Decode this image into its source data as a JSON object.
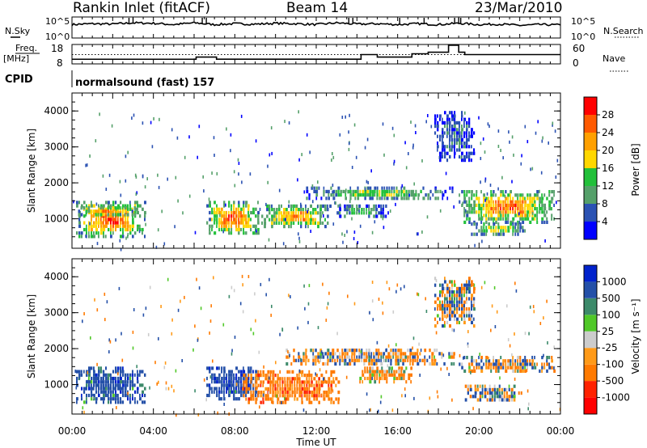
{
  "header": {
    "station": "Rankin Inlet (fitACF)",
    "beam": "Beam 14",
    "date": "23/Mar/2010"
  },
  "noise_panel": {
    "left_label": "N.Sky",
    "right_label": "N.Search",
    "left_ticks": [
      "10^5",
      "10^0"
    ],
    "right_ticks": [
      "10^5",
      "10^0"
    ]
  },
  "freq_panel": {
    "left_label_line1": "Freq.",
    "left_label_line2": "[MHz]",
    "right_label": "Nave",
    "left_ticks": [
      "18",
      "8"
    ],
    "right_ticks": [
      "60",
      "0"
    ]
  },
  "cpid_panel": {
    "label": "CPID",
    "text": "normalsound (fast) 157"
  },
  "x_axis": {
    "label": "Time UT",
    "ticks": [
      "00:00",
      "04:00",
      "08:00",
      "12:00",
      "16:00",
      "20:00",
      "00:00"
    ]
  },
  "range_axis": {
    "label": "Slant Range [km]",
    "ticks": [
      "1000",
      "2000",
      "3000",
      "4000"
    ]
  },
  "colors": {
    "power": [
      "#0000ff",
      "#2b52b3",
      "#55a06a",
      "#22c03a",
      "#ffd700",
      "#ffa000",
      "#ff5a00",
      "#ff0000"
    ],
    "velocity": [
      "#0022cc",
      "#2450a8",
      "#3c8a6a",
      "#50c828",
      "#cccccc",
      "#ff9a18",
      "#ff7a00",
      "#ff2200",
      "#ff0000"
    ]
  },
  "power_colorbar": {
    "label": "Power [dB]",
    "ticks": [
      "4",
      "8",
      "12",
      "16",
      "20",
      "24",
      "28"
    ]
  },
  "velocity_colorbar": {
    "label": "Velocity [m s⁻¹]",
    "ticks": [
      "1000",
      "500",
      "100",
      "25",
      "-25",
      "-100",
      "-500",
      "-1000"
    ]
  },
  "chart_data": [
    {
      "type": "line",
      "panel": "noise",
      "x_hours": [
        0,
        1,
        2,
        3,
        4,
        5,
        6,
        7,
        8,
        9,
        10,
        11,
        12,
        13,
        14,
        15,
        16,
        17,
        18,
        19,
        20,
        21,
        22,
        23,
        24
      ],
      "series": [
        {
          "values": [
            3.2,
            3.4,
            3.3,
            3.6,
            3.5,
            3.2,
            3.6,
            3.2,
            3.4,
            3.3,
            3.5,
            3.4,
            3.2,
            3.6,
            3.3,
            3.4,
            3.2,
            3.4,
            3.2,
            3.5,
            3.2,
            3.3,
            3.0,
            3.2,
            3.1
          ]
        }
      ],
      "ylim": [
        0,
        5
      ]
    },
    {
      "type": "line",
      "panel": "frequency",
      "x_hours": [
        0,
        6.0,
        6.1,
        7.0,
        7.1,
        14.0,
        14.2,
        14.8,
        15.0,
        16.5,
        16.7,
        17.3,
        17.5,
        18.2,
        18.5,
        19.0,
        19.3,
        24
      ],
      "series": [
        {
          "values": [
            10.4,
            10.4,
            11.5,
            11.5,
            10.4,
            10.4,
            12.8,
            12.8,
            11.5,
            11.5,
            13.2,
            13.2,
            14.0,
            14.0,
            17.6,
            14.0,
            12.8,
            12.8
          ]
        }
      ],
      "ylim": [
        8,
        18
      ],
      "reference_line": 12.8
    },
    {
      "type": "heatmap",
      "panel": "power",
      "title": "Power [dB]",
      "xlabel": "Time UT",
      "ylabel": "Slant Range [km]",
      "xlim_hours": [
        0,
        24
      ],
      "ylim_km": [
        180,
        4500
      ],
      "value_range": [
        0,
        30
      ],
      "regions": [
        {
          "t": [
            0.2,
            3.6
          ],
          "r": [
            500,
            1500
          ],
          "peak": 30
        },
        {
          "t": [
            0.3,
            3.2
          ],
          "r": [
            1050,
            1350
          ],
          "peak": 26
        },
        {
          "t": [
            6.6,
            9.2
          ],
          "r": [
            600,
            1500
          ],
          "peak": 30
        },
        {
          "t": [
            9.3,
            12.8
          ],
          "r": [
            700,
            1400
          ],
          "peak": 26
        },
        {
          "t": [
            11.5,
            18.8
          ],
          "r": [
            1500,
            1900
          ],
          "peak": 18
        },
        {
          "t": [
            19.0,
            23.8
          ],
          "r": [
            900,
            1800
          ],
          "peak": 28
        },
        {
          "t": [
            19.6,
            22.4
          ],
          "r": [
            500,
            900
          ],
          "peak": 20
        },
        {
          "t": [
            13.0,
            15.6
          ],
          "r": [
            1000,
            1400
          ],
          "peak": 14
        },
        {
          "t": [
            17.8,
            19.8
          ],
          "r": [
            2600,
            4000
          ],
          "peak": 8
        }
      ]
    },
    {
      "type": "heatmap",
      "panel": "velocity",
      "title": "Velocity [m s⁻¹]",
      "xlabel": "Time UT",
      "ylabel": "Slant Range [km]",
      "xlim_hours": [
        0,
        24
      ],
      "ylim_km": [
        180,
        4500
      ],
      "value_range": [
        -1000,
        1000
      ],
      "regions": [
        {
          "t": [
            0.2,
            3.6
          ],
          "r": [
            500,
            1500
          ],
          "value": 300
        },
        {
          "t": [
            6.6,
            9.2
          ],
          "r": [
            600,
            1500
          ],
          "value": 400
        },
        {
          "t": [
            8.4,
            13.2
          ],
          "r": [
            500,
            1400
          ],
          "value": -300
        },
        {
          "t": [
            10.5,
            18.8
          ],
          "r": [
            1500,
            2000
          ],
          "value": 0
        },
        {
          "t": [
            14.0,
            16.8
          ],
          "r": [
            1000,
            1500
          ],
          "value": -150
        },
        {
          "t": [
            19.0,
            23.8
          ],
          "r": [
            1300,
            1800
          ],
          "value": 0
        },
        {
          "t": [
            19.3,
            22.2
          ],
          "r": [
            500,
            1000
          ],
          "value": 60
        },
        {
          "t": [
            17.8,
            19.8
          ],
          "r": [
            2600,
            4000
          ],
          "value": 0
        }
      ]
    }
  ]
}
